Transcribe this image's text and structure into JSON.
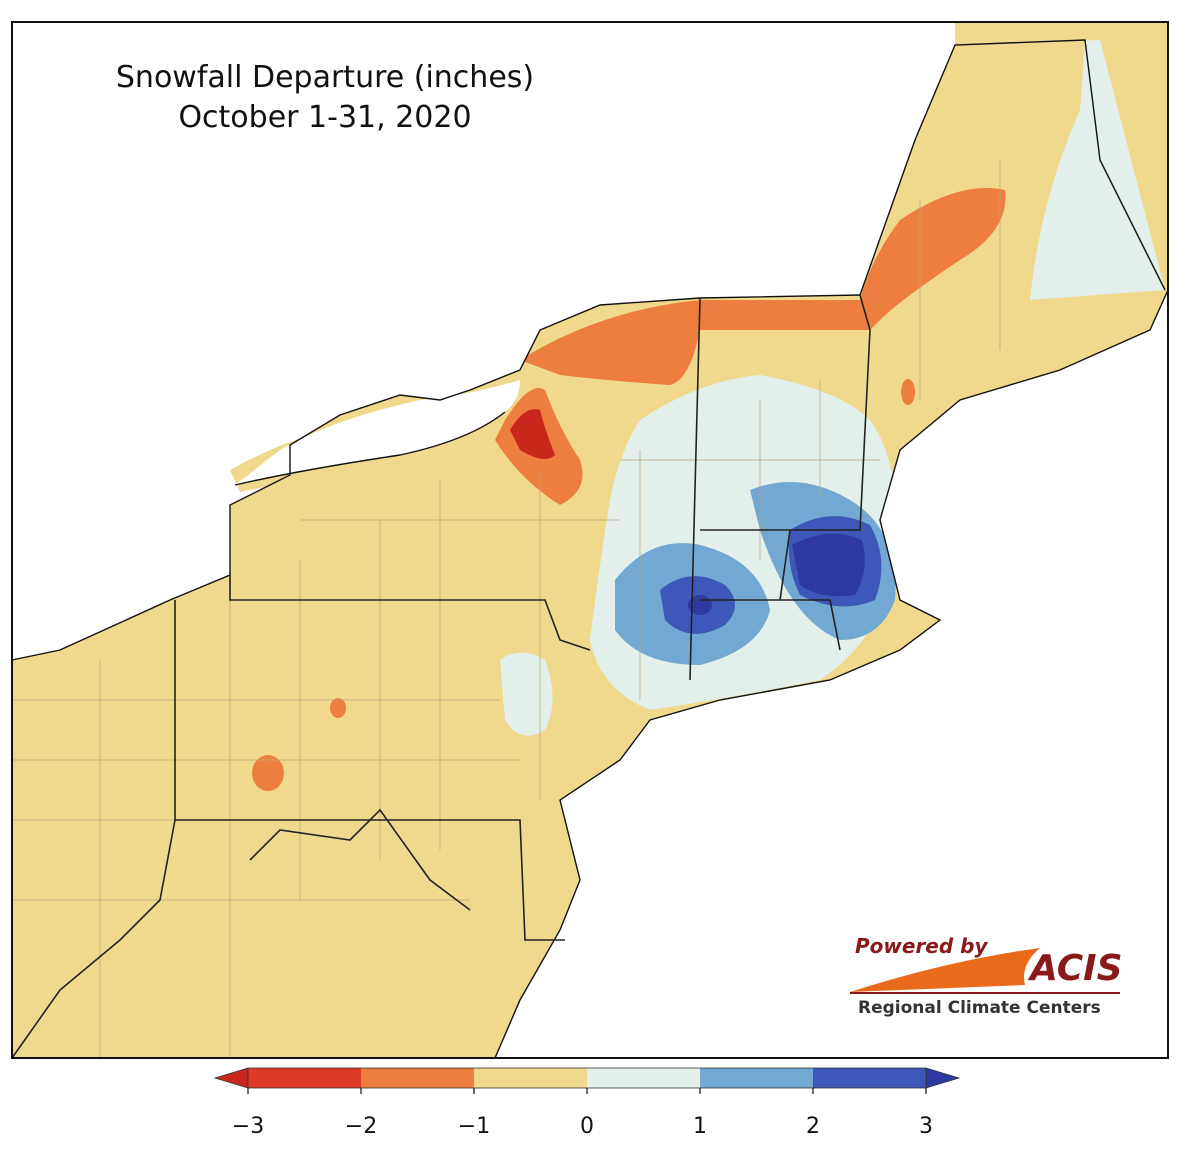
{
  "title": [
    "Snowfall Departure (inches)",
    "October 1-31, 2020"
  ],
  "legend": {
    "ticks": [
      {
        "value": -3,
        "label": "−3"
      },
      {
        "value": -2,
        "label": "−2"
      },
      {
        "value": -1,
        "label": "−1"
      },
      0,
      1,
      2,
      3
    ],
    "colors": [
      "#de3b26",
      "#ee7e3f",
      "#f0d88c",
      "#e2efea",
      "#72a8d1",
      "#3d58b9"
    ],
    "under_color": "#c9261c",
    "over_color": "#2d3a9f"
  },
  "logo": {
    "line1": "Powered by",
    "brand": "ACIS",
    "line2": "Regional Climate Centers"
  }
}
